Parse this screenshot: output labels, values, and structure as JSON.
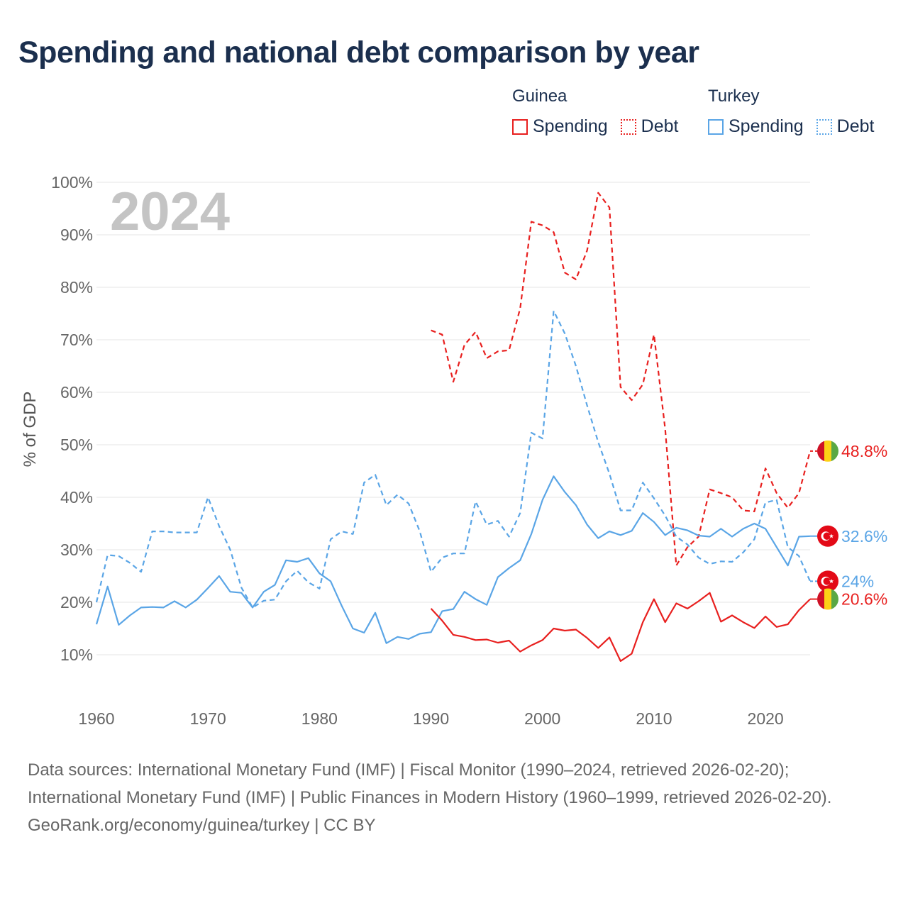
{
  "title": "Spending and national debt comparison by year",
  "legend": {
    "groups": [
      {
        "country": "Guinea",
        "spending_label": "Spending",
        "debt_label": "Debt",
        "color": "#e8201f"
      },
      {
        "country": "Turkey",
        "spending_label": "Spending",
        "debt_label": "Debt",
        "color": "#5aa5e6"
      }
    ]
  },
  "footer": {
    "sources": "Data sources: International Monetary Fund (IMF) | Fiscal Monitor (1990–2024, retrieved 2026-02-20); International Monetary Fund (IMF) | Public Finances in Modern History (1960–1999, retrieved 2026-02-20).",
    "credit": "GeoRank.org/economy/guinea/turkey | CC BY"
  },
  "chart_data": {
    "type": "line",
    "title": "Spending and national debt comparison by year",
    "year_label": "2024",
    "ylabel": "% of GDP",
    "xlabel": "",
    "xlim": [
      1960,
      2024
    ],
    "ylim": [
      0,
      100
    ],
    "x_ticks": [
      1960,
      1970,
      1980,
      1990,
      2000,
      2010,
      2020
    ],
    "y_ticks": [
      10,
      20,
      30,
      40,
      50,
      60,
      70,
      80,
      90,
      100
    ],
    "y_tick_labels": [
      "10%",
      "20%",
      "30%",
      "40%",
      "50%",
      "60%",
      "70%",
      "80%",
      "90%",
      "100%"
    ],
    "grid": true,
    "legend_position": "top-right",
    "series": [
      {
        "name": "Guinea Debt",
        "country": "Guinea",
        "metric": "Debt",
        "color": "#e8201f",
        "dashed": true,
        "flag": "guinea-flag",
        "end_label": "48.8%",
        "x": [
          1990,
          1991,
          1992,
          1993,
          1994,
          1995,
          1996,
          1997,
          1998,
          1999,
          2000,
          2001,
          2002,
          2003,
          2004,
          2005,
          2006,
          2007,
          2008,
          2009,
          2010,
          2011,
          2012,
          2013,
          2014,
          2015,
          2016,
          2017,
          2018,
          2019,
          2020,
          2021,
          2022,
          2023,
          2024
        ],
        "values": [
          71.8,
          71,
          62,
          69,
          71.5,
          66.5,
          67.8,
          68,
          76,
          92.5,
          91.8,
          90.5,
          82.8,
          81.5,
          87,
          98,
          95.2,
          61,
          58.5,
          61.5,
          71,
          53,
          27,
          30.5,
          32.5,
          41.5,
          40.8,
          40,
          37.5,
          37.3,
          45.5,
          40.8,
          38,
          40.8,
          48.8
        ]
      },
      {
        "name": "Turkey Debt",
        "country": "Turkey",
        "metric": "Debt",
        "color": "#5aa5e6",
        "dashed": true,
        "flag": "turkey-flag",
        "end_label": "24%",
        "x": [
          1960,
          1961,
          1962,
          1963,
          1964,
          1965,
          1966,
          1967,
          1968,
          1969,
          1970,
          1971,
          1972,
          1973,
          1974,
          1975,
          1976,
          1977,
          1978,
          1979,
          1980,
          1981,
          1982,
          1983,
          1984,
          1985,
          1986,
          1987,
          1988,
          1989,
          1990,
          1991,
          1992,
          1993,
          1994,
          1995,
          1996,
          1997,
          1998,
          1999,
          2000,
          2001,
          2002,
          2003,
          2004,
          2005,
          2006,
          2007,
          2008,
          2009,
          2010,
          2011,
          2012,
          2013,
          2014,
          2015,
          2016,
          2017,
          2018,
          2019,
          2020,
          2021,
          2022,
          2023,
          2024
        ],
        "values": [
          20,
          29,
          28.8,
          27.5,
          25.8,
          33.5,
          33.5,
          33.3,
          33.3,
          33.3,
          40,
          34.5,
          30,
          22.8,
          19,
          20.3,
          20.5,
          24,
          26,
          23.8,
          22.6,
          32,
          33.5,
          33,
          42.8,
          44.3,
          38.5,
          40.5,
          38.8,
          33.5,
          25.8,
          28.5,
          29.3,
          29.3,
          39.2,
          34.8,
          35.5,
          32.5,
          37,
          52.3,
          51.2,
          75.5,
          71.2,
          65,
          57.5,
          50.5,
          44.5,
          37.5,
          37.5,
          42.8,
          39.8,
          36.5,
          32.5,
          31,
          28.5,
          27.3,
          27.8,
          27.7,
          29.5,
          32,
          39,
          39.5,
          30.5,
          28.8,
          24
        ]
      },
      {
        "name": "Turkey Spending",
        "country": "Turkey",
        "metric": "Spending",
        "color": "#5aa5e6",
        "dashed": false,
        "flag": "turkey-flag",
        "end_label": "32.6%",
        "x": [
          1960,
          1961,
          1962,
          1963,
          1964,
          1965,
          1966,
          1967,
          1968,
          1969,
          1970,
          1971,
          1972,
          1973,
          1974,
          1975,
          1976,
          1977,
          1978,
          1979,
          1980,
          1981,
          1982,
          1983,
          1984,
          1985,
          1986,
          1987,
          1988,
          1989,
          1990,
          1991,
          1992,
          1993,
          1994,
          1995,
          1996,
          1997,
          1998,
          1999,
          2000,
          2001,
          2002,
          2003,
          2004,
          2005,
          2006,
          2007,
          2008,
          2009,
          2010,
          2011,
          2012,
          2013,
          2014,
          2015,
          2016,
          2017,
          2018,
          2019,
          2020,
          2021,
          2022,
          2023,
          2024
        ],
        "values": [
          15.8,
          23,
          15.7,
          17.5,
          19,
          19.1,
          19,
          20.2,
          19,
          20.5,
          22.7,
          25,
          22,
          21.8,
          19,
          22,
          23.3,
          28,
          27.7,
          28.4,
          25.5,
          24,
          19.3,
          15,
          14.2,
          18,
          12.2,
          13.4,
          13,
          14,
          14.3,
          18.3,
          18.7,
          22,
          20.6,
          19.5,
          24.8,
          26.5,
          28,
          33,
          39.5,
          44,
          41,
          38.5,
          34.8,
          32.2,
          33.5,
          32.8,
          33.6,
          37,
          35.3,
          32.8,
          34.2,
          33.7,
          32.7,
          32.5,
          34,
          32.5,
          34,
          35,
          34,
          30.5,
          27,
          32.5,
          32.6
        ]
      },
      {
        "name": "Guinea Spending",
        "country": "Guinea",
        "metric": "Spending",
        "color": "#e8201f",
        "dashed": false,
        "flag": "guinea-flag",
        "end_label": "20.6%",
        "x": [
          1990,
          1991,
          1992,
          1993,
          1994,
          1995,
          1996,
          1997,
          1998,
          1999,
          2000,
          2001,
          2002,
          2003,
          2004,
          2005,
          2006,
          2007,
          2008,
          2009,
          2010,
          2011,
          2012,
          2013,
          2014,
          2015,
          2016,
          2017,
          2018,
          2019,
          2020,
          2021,
          2022,
          2023,
          2024
        ],
        "values": [
          18.8,
          16.5,
          13.8,
          13.4,
          12.8,
          12.9,
          12.3,
          12.7,
          10.6,
          11.8,
          12.8,
          15,
          14.6,
          14.8,
          13.2,
          11.3,
          13.3,
          8.8,
          10.2,
          16.2,
          20.6,
          16.2,
          19.8,
          18.8,
          20.2,
          21.8,
          16.3,
          17.5,
          16.2,
          15.1,
          17.3,
          15.3,
          15.8,
          18.5,
          20.6
        ]
      }
    ]
  }
}
